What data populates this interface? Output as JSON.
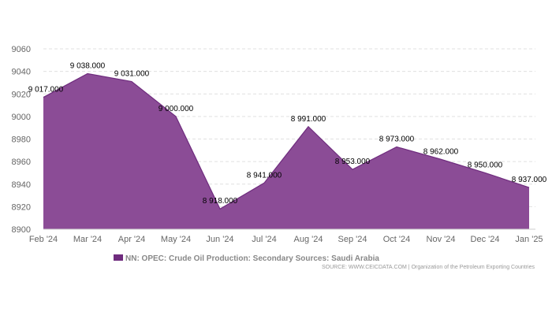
{
  "chart_data": {
    "type": "area",
    "x": [
      "Feb '24",
      "Mar '24",
      "Apr '24",
      "May '24",
      "Jun '24",
      "Jul '24",
      "Aug '24",
      "Sep '24",
      "Oct '24",
      "Nov '24",
      "Dec '24",
      "Jan '25"
    ],
    "series": [
      {
        "name": "NN: OPEC: Crude Oil Production: Secondary Sources: Saudi Arabia",
        "values": [
          9017,
          9038,
          9031,
          9000,
          8918,
          8941,
          8991,
          8953,
          8973,
          8962,
          8950,
          8937
        ],
        "data_labels": [
          "9 017.000",
          "9 038.000",
          "9 031.000",
          "9 000.000",
          "8 918.000",
          "8 941.000",
          "8 991.000",
          "8 953.000",
          "8 973.000",
          "8 962.000",
          "8 950.000",
          "8 937.000"
        ]
      }
    ],
    "y_ticks": [
      8900,
      8920,
      8940,
      8960,
      8980,
      9000,
      9020,
      9040,
      9060
    ],
    "ylim": [
      8900,
      9060
    ],
    "grid": true,
    "legend_position": "bottom-center",
    "colors": {
      "area_fill": "#8b4c96",
      "area_line": "#6f2c7e",
      "legend_swatch": "#6f2c7e",
      "grid": "#e0e0e0"
    }
  },
  "source": "SOURCE: WWW.CEICDATA.COM | Organization of the Petroleum Exporting Countries"
}
